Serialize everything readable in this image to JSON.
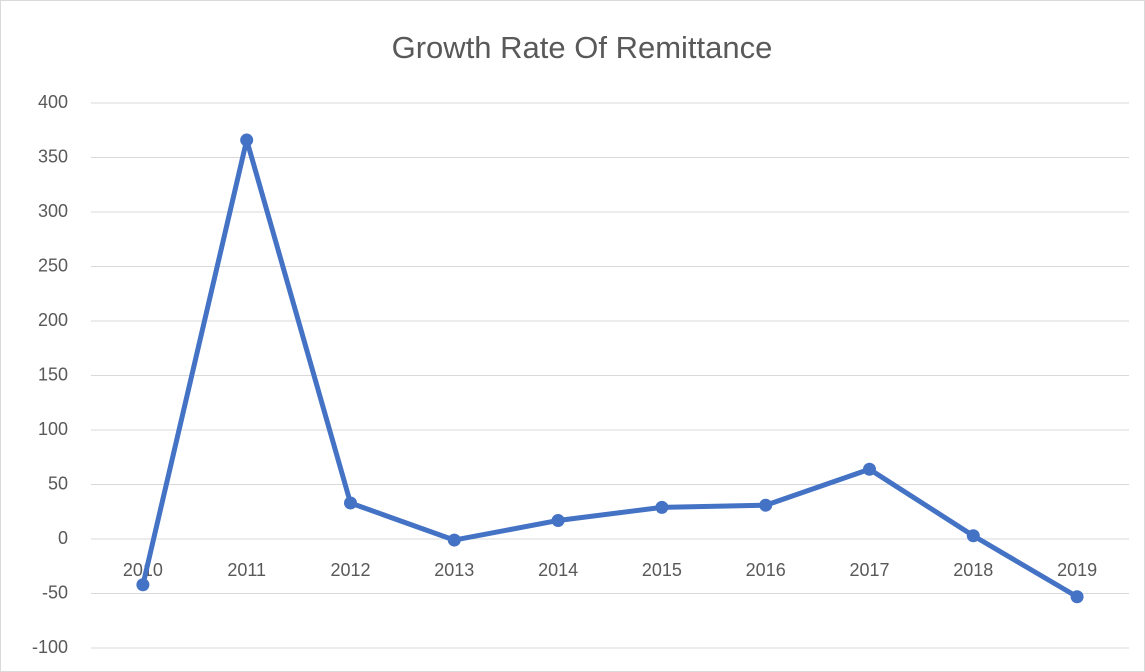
{
  "chart_data": {
    "type": "line",
    "title": "Growth Rate Of Remittance",
    "categories": [
      "2010",
      "2011",
      "2012",
      "2013",
      "2014",
      "2015",
      "2016",
      "2017",
      "2018",
      "2019"
    ],
    "values": [
      -42,
      366,
      33,
      -1,
      17,
      29,
      31,
      64,
      3,
      -53
    ],
    "color": "#4472c4",
    "ylim": [
      -100,
      400
    ],
    "yticks": [
      -100,
      -50,
      0,
      50,
      100,
      150,
      200,
      250,
      300,
      350,
      400
    ],
    "grid": true
  }
}
